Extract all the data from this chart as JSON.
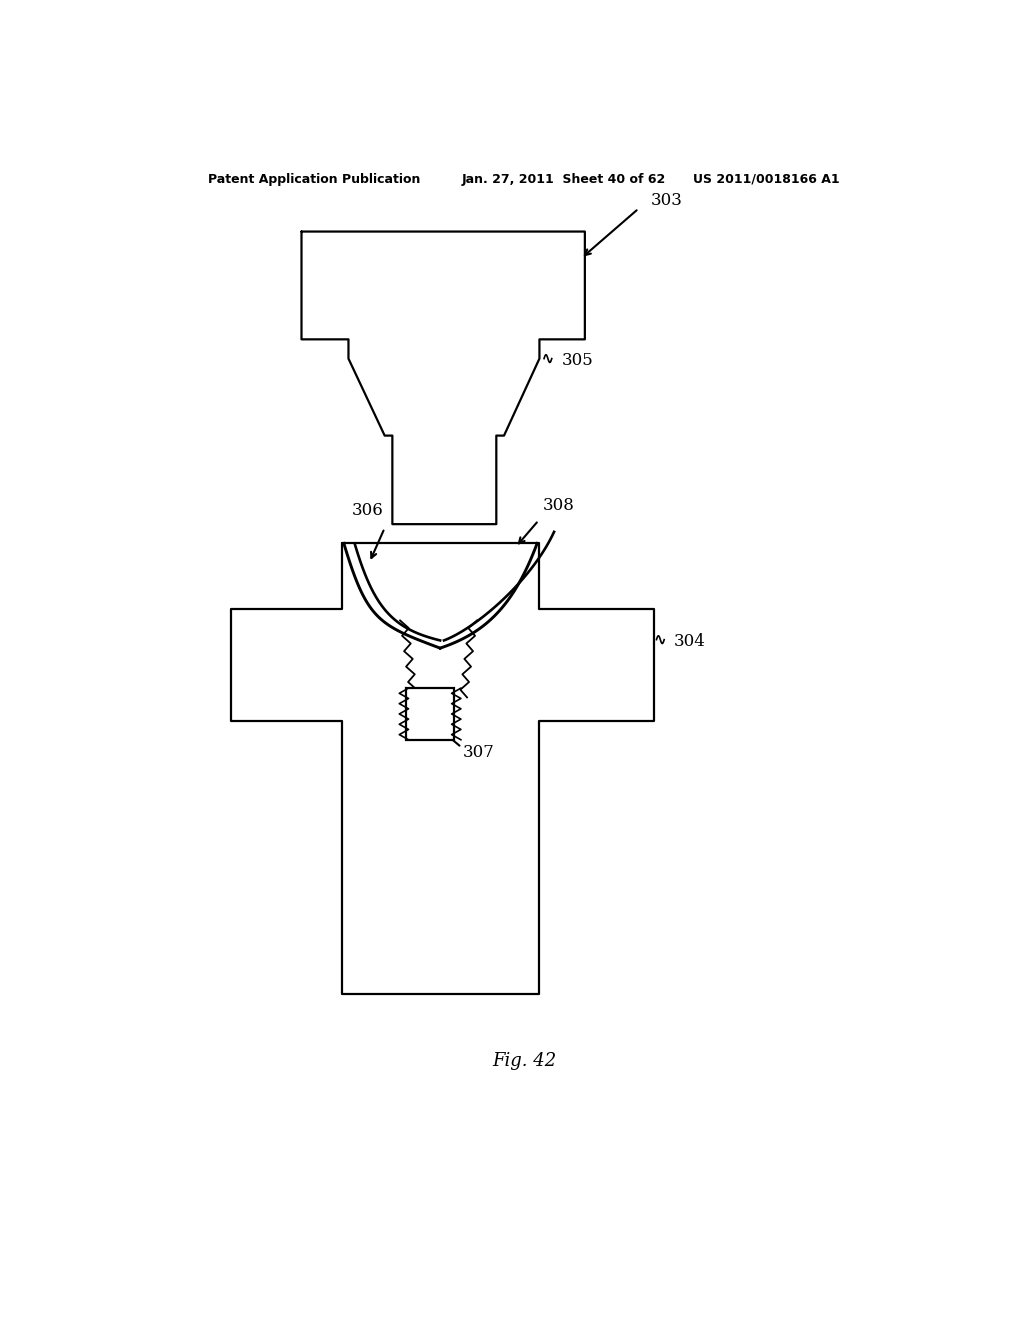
{
  "background_color": "#ffffff",
  "header_left": "Patent Application Publication",
  "header_mid": "Jan. 27, 2011  Sheet 40 of 62",
  "header_right": "US 2011/0018166 A1",
  "figure_label": "Fig. 42",
  "label_303": "303",
  "label_304": "304",
  "label_305": "305",
  "label_306": "306",
  "label_307": "307",
  "label_308": "308",
  "line_color": "#000000",
  "line_width": 1.6
}
